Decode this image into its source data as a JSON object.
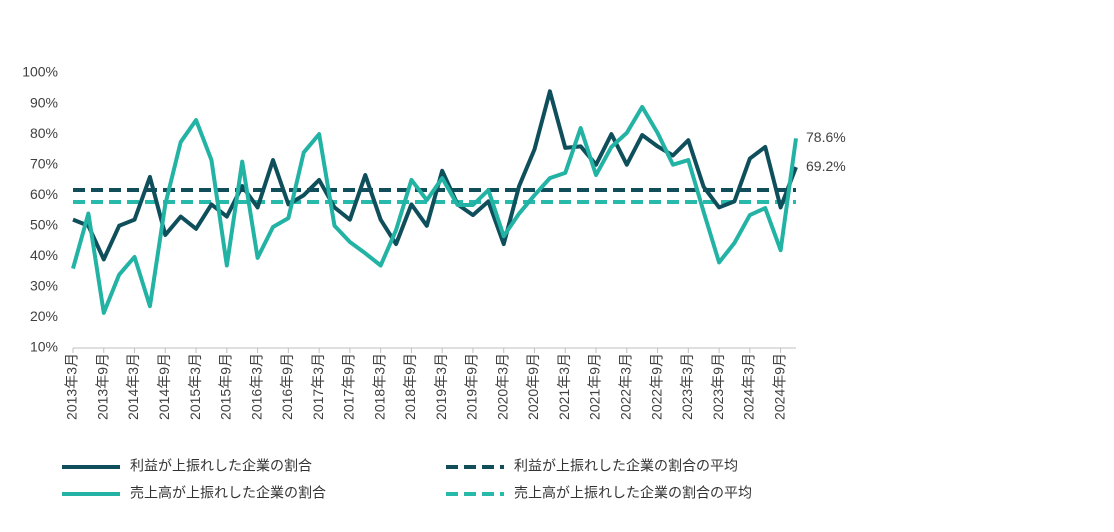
{
  "chart_data": {
    "type": "line",
    "categories": [
      "2013年3月",
      null,
      "2013年9月",
      null,
      "2014年3月",
      null,
      "2014年9月",
      null,
      "2015年3月",
      null,
      "2015年9月",
      null,
      "2016年3月",
      null,
      "2016年9月",
      null,
      "2017年3月",
      null,
      "2017年9月",
      null,
      "2018年3月",
      null,
      "2018年9月",
      null,
      "2019年3月",
      null,
      "2019年9月",
      null,
      "2020年3月",
      null,
      "2020年9月",
      null,
      "2021年3月",
      null,
      "2021年9月",
      null,
      "2022年3月",
      null,
      "2022年9月",
      null,
      "2023年3月",
      null,
      "2023年9月",
      null,
      "2024年3月",
      null,
      "2024年9月",
      null
    ],
    "series": [
      {
        "name": "利益が上振れした企業の割合",
        "color": "#0e4f5b",
        "values": [
          52,
          50,
          39,
          50,
          52,
          66,
          47,
          53,
          49,
          57,
          53,
          63,
          56,
          71.5,
          57,
          60,
          65,
          56,
          52,
          66.6,
          52,
          44,
          57,
          50,
          68,
          57,
          53.5,
          58,
          44,
          63,
          75,
          94,
          75.5,
          76,
          70,
          80,
          70,
          79.7,
          76,
          73,
          78,
          62.7,
          56,
          58,
          72,
          75.8,
          56,
          69.2
        ],
        "end_label": "69.2%"
      },
      {
        "name": "売上高が上振れした企業の割合",
        "color": "#22b3a5",
        "values": [
          36,
          54,
          21.5,
          34,
          39.8,
          23.7,
          57,
          77.4,
          84.6,
          71.5,
          37,
          71,
          39.5,
          49.6,
          52.5,
          74,
          80,
          50,
          44.7,
          41,
          37,
          48.6,
          65,
          58.4,
          65.6,
          56.8,
          56.8,
          61.7,
          46.6,
          54,
          60,
          65.6,
          67.3,
          82,
          66.6,
          75.8,
          80.4,
          88.9,
          80.4,
          70,
          71.5,
          54.5,
          38,
          44.4,
          53.5,
          55.8,
          42,
          78.6
        ],
        "end_label": "78.6%"
      }
    ],
    "reference_lines": [
      {
        "name": "利益が上振れした企業の割合の平均",
        "color": "#124d5a",
        "value": 61.7
      },
      {
        "name": "売上高が上振れした企業の割合の平均",
        "color": "#27b9aa",
        "value": 57.8
      }
    ],
    "ylim": [
      10,
      100
    ],
    "yticks": [
      {
        "value": 10,
        "label": "10%"
      },
      {
        "value": 20,
        "label": "20%"
      },
      {
        "value": 30,
        "label": "30%"
      },
      {
        "value": 40,
        "label": "40%"
      },
      {
        "value": 50,
        "label": "50%"
      },
      {
        "value": 60,
        "label": "60%"
      },
      {
        "value": 70,
        "label": "70%"
      },
      {
        "value": 80,
        "label": "80%"
      },
      {
        "value": 90,
        "label": "90%"
      },
      {
        "value": 100,
        "label": "100%"
      }
    ],
    "grid": false
  }
}
